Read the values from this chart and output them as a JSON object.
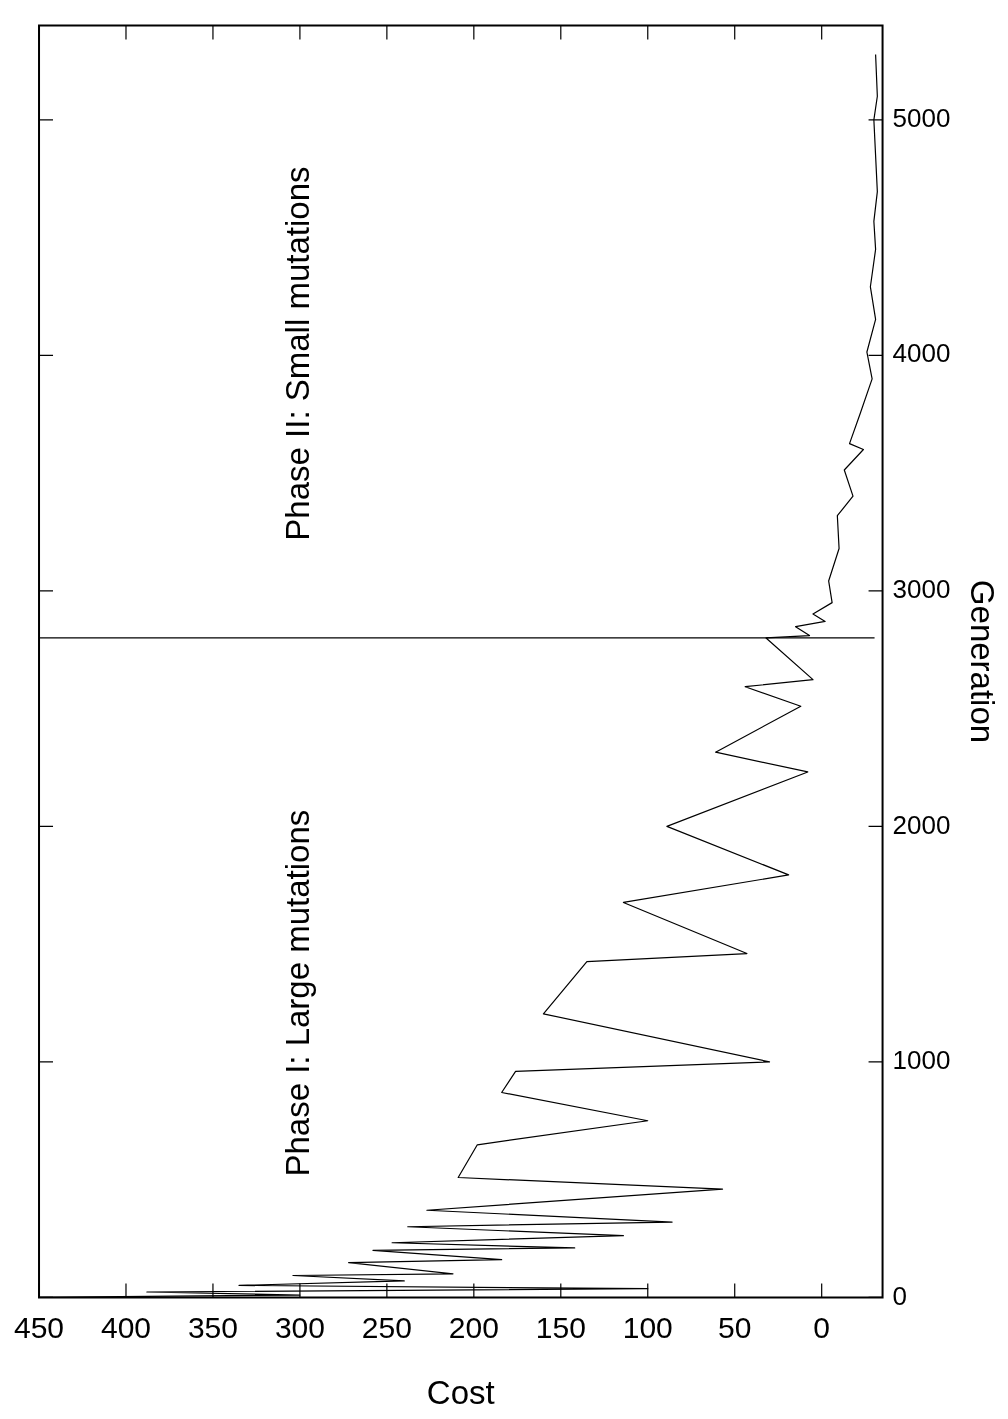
{
  "chart_data": {
    "type": "line",
    "xlabel": "Cost",
    "ylabel": "Generation",
    "xlim": [
      450,
      -35
    ],
    "xticks": [
      450,
      400,
      350,
      300,
      250,
      200,
      150,
      100,
      50,
      0
    ],
    "ylim": [
      0,
      5400
    ],
    "yticks": [
      0,
      1000,
      2000,
      3000,
      4000,
      5000
    ],
    "grid": false,
    "legend": false,
    "marker": "none",
    "line_style": "solid",
    "ref_lines": [
      {
        "axis": "y",
        "value": 2800,
        "color": "#000000"
      }
    ],
    "annotations": [
      "Phase I: Large mutations",
      "Phase II: Small mutations"
    ],
    "series": [
      {
        "color": "#000000",
        "x": [
          450,
          300,
          388,
          100,
          335,
          240,
          304,
          212,
          272,
          184,
          258,
          142,
          247,
          114,
          238,
          86,
          227,
          57,
          209,
          198,
          100,
          184,
          176,
          30,
          160,
          135,
          43,
          114,
          19,
          89,
          8,
          61,
          12,
          44,
          5,
          32,
          7,
          15,
          -2,
          5,
          -6,
          -4,
          -10,
          -9,
          -18,
          -13,
          -24,
          -16,
          -22,
          -29,
          -26,
          -31,
          -28,
          -31,
          -30,
          -32,
          -30,
          -32,
          -31
        ],
        "values": [
          0,
          10,
          23,
          37,
          51,
          70,
          93,
          100,
          148,
          160,
          200,
          210,
          232,
          262,
          300,
          320,
          370,
          460,
          509,
          648,
          750,
          870,
          960,
          1000,
          1204,
          1426,
          1460,
          1677,
          1794,
          2000,
          2231,
          2315,
          2510,
          2593,
          2623,
          2800,
          2810,
          2848,
          2870,
          2902,
          2950,
          3042,
          3180,
          3319,
          3402,
          3513,
          3600,
          3625,
          3750,
          3900,
          4014,
          4153,
          4291,
          4450,
          4569,
          4695,
          5000,
          5100,
          5277
        ]
      }
    ]
  }
}
